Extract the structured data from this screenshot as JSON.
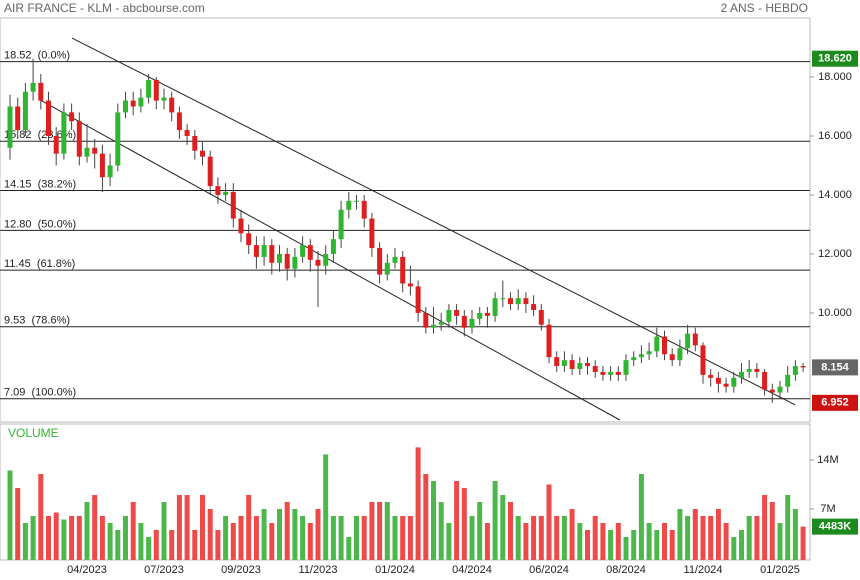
{
  "chart_data": {
    "type": "candlestick",
    "title": "AIR FRANCE - KLM - abcbourse.com",
    "subtitle": "2 ANS - HEBDO",
    "volume_label": "VOLUME",
    "categories": [
      null,
      null,
      null,
      null,
      null,
      null,
      null,
      null,
      null,
      null,
      "04/2023",
      null,
      null,
      null,
      null,
      null,
      null,
      null,
      null,
      null,
      "07/2023",
      null,
      null,
      null,
      null,
      null,
      null,
      null,
      null,
      null,
      "09/2023",
      null,
      null,
      null,
      null,
      null,
      null,
      null,
      null,
      null,
      "11/2023",
      null,
      null,
      null,
      null,
      null,
      null,
      null,
      null,
      null,
      "01/2024",
      null,
      null,
      null,
      null,
      null,
      null,
      null,
      null,
      null,
      "04/2024",
      null,
      null,
      null,
      null,
      null,
      null,
      null,
      null,
      null,
      "06/2024",
      null,
      null,
      null,
      null,
      null,
      null,
      null,
      null,
      null,
      "08/2024",
      null,
      null,
      null,
      null,
      null,
      null,
      null,
      null,
      null,
      "11/2024",
      null,
      null,
      null,
      null,
      null,
      null,
      null,
      null,
      null,
      "01/2025",
      null,
      null,
      null
    ],
    "open": [
      15.6,
      17.0,
      16.2,
      17.5,
      17.8,
      17.2,
      16.0,
      15.4,
      16.8,
      16.5,
      15.3,
      15.6,
      15.4,
      14.6,
      15.0,
      16.8,
      17.2,
      17.0,
      17.3,
      17.9,
      17.2,
      17.3,
      16.8,
      16.2,
      16.0,
      15.5,
      15.3,
      14.3,
      14.0,
      14.1,
      13.2,
      12.7,
      12.3,
      11.9,
      12.3,
      11.7,
      12.0,
      11.5,
      11.9,
      12.3,
      11.8,
      11.6,
      12.0,
      12.5,
      13.5,
      13.8,
      13.8,
      13.2,
      12.2,
      11.3,
      11.7,
      11.9,
      11.0,
      10.9,
      10.0,
      9.5,
      9.6,
      9.7,
      10.1,
      9.9,
      9.5,
      9.8,
      10.0,
      9.9,
      10.5,
      10.5,
      10.3,
      10.5,
      10.3,
      10.1,
      9.6,
      8.5,
      8.2,
      8.4,
      8.1,
      8.3,
      8.2,
      8.0,
      7.9,
      8.0,
      7.9,
      8.4,
      8.5,
      8.6,
      8.7,
      9.2,
      8.6,
      8.4,
      8.8,
      9.3,
      8.9,
      7.9,
      7.8,
      7.6,
      7.5,
      7.8,
      8.0,
      8.1,
      8.0,
      7.4,
      7.3,
      7.5,
      7.9,
      8.2
    ],
    "high": [
      17.4,
      17.3,
      17.8,
      18.62,
      18.1,
      17.5,
      16.3,
      17.1,
      17.1,
      16.8,
      16.4,
      15.9,
      15.7,
      15.4,
      17.1,
      17.5,
      17.5,
      17.6,
      18.1,
      18.0,
      17.6,
      17.5,
      17.0,
      16.4,
      16.2,
      15.8,
      15.5,
      14.6,
      14.4,
      14.4,
      13.5,
      13.0,
      12.6,
      12.6,
      12.5,
      12.3,
      12.2,
      12.2,
      12.6,
      12.5,
      12.1,
      12.3,
      12.8,
      13.8,
      14.1,
      14.0,
      14.0,
      13.4,
      12.4,
      12.0,
      12.2,
      12.1,
      11.6,
      11.1,
      10.2,
      10.2,
      10.0,
      10.3,
      10.3,
      10.1,
      10.1,
      10.2,
      10.2,
      10.7,
      11.1,
      10.7,
      10.8,
      10.7,
      10.6,
      10.3,
      9.8,
      8.7,
      8.7,
      8.6,
      8.5,
      8.5,
      8.4,
      8.2,
      8.2,
      8.2,
      8.6,
      8.7,
      8.9,
      9.0,
      9.5,
      9.4,
      8.8,
      9.1,
      9.6,
      9.5,
      9.0,
      8.1,
      8.0,
      7.8,
      8.0,
      8.3,
      8.4,
      8.3,
      8.1,
      7.6,
      7.7,
      8.2,
      8.4,
      8.3
    ],
    "low": [
      15.2,
      15.9,
      16.0,
      17.2,
      16.9,
      15.7,
      15.0,
      15.2,
      16.2,
      15.0,
      15.1,
      14.9,
      14.1,
      14.3,
      14.8,
      16.6,
      16.7,
      16.8,
      17.1,
      16.9,
      16.9,
      16.5,
      15.9,
      15.7,
      15.2,
      15.0,
      14.0,
      13.7,
      13.8,
      12.9,
      12.4,
      12.0,
      11.5,
      11.6,
      11.3,
      11.4,
      11.1,
      11.2,
      11.7,
      11.4,
      10.2,
      11.3,
      11.7,
      12.2,
      13.2,
      13.5,
      12.9,
      11.9,
      11.0,
      11.1,
      11.5,
      10.7,
      10.6,
      9.7,
      9.3,
      9.3,
      9.4,
      9.5,
      9.6,
      9.2,
      9.3,
      9.6,
      9.5,
      9.7,
      10.2,
      10.1,
      10.1,
      10.0,
      9.9,
      9.4,
      8.3,
      8.0,
      8.0,
      7.9,
      7.9,
      7.9,
      7.8,
      7.7,
      7.7,
      7.7,
      7.7,
      8.2,
      8.3,
      8.4,
      8.5,
      8.4,
      8.2,
      8.2,
      8.6,
      8.7,
      7.6,
      7.5,
      7.3,
      7.3,
      7.3,
      7.6,
      7.8,
      7.8,
      7.2,
      6.952,
      7.1,
      7.3,
      7.7,
      8.0
    ],
    "close": [
      17.0,
      16.2,
      17.5,
      17.8,
      17.2,
      16.0,
      15.4,
      16.8,
      16.5,
      15.3,
      15.6,
      15.4,
      14.6,
      15.0,
      16.8,
      17.2,
      17.0,
      17.3,
      17.9,
      17.2,
      17.3,
      16.8,
      16.2,
      16.0,
      15.5,
      15.3,
      14.3,
      14.0,
      14.1,
      13.2,
      12.7,
      12.3,
      11.9,
      12.3,
      11.7,
      12.0,
      11.5,
      11.9,
      12.3,
      11.8,
      11.6,
      12.0,
      12.5,
      13.5,
      13.8,
      13.8,
      13.2,
      12.2,
      11.3,
      11.7,
      11.9,
      11.0,
      10.9,
      10.0,
      9.5,
      9.6,
      9.7,
      10.1,
      9.9,
      9.5,
      9.8,
      10.0,
      9.9,
      10.5,
      10.5,
      10.3,
      10.5,
      10.3,
      10.1,
      9.6,
      8.5,
      8.2,
      8.4,
      8.1,
      8.3,
      8.2,
      8.0,
      7.9,
      8.0,
      7.9,
      8.4,
      8.5,
      8.6,
      8.7,
      9.2,
      8.6,
      8.4,
      8.8,
      9.3,
      8.9,
      7.9,
      7.8,
      7.6,
      7.5,
      7.8,
      8.0,
      8.1,
      8.0,
      7.4,
      7.3,
      7.5,
      7.9,
      8.2,
      8.154
    ],
    "volume": [
      12.5,
      10,
      5,
      6,
      12,
      6,
      6.5,
      5.5,
      6,
      6,
      8,
      9,
      6,
      5,
      4,
      6,
      8,
      5,
      3,
      4,
      8,
      4,
      9,
      9,
      4,
      9,
      7,
      4,
      6,
      5,
      6,
      9,
      6,
      7,
      5,
      7,
      8,
      7,
      6,
      5,
      7,
      14.8,
      6,
      6,
      3,
      6,
      6,
      8,
      8,
      8,
      6,
      6,
      6,
      15.8,
      12,
      11,
      8,
      5,
      11,
      10,
      6,
      8,
      5,
      11,
      9,
      8,
      6,
      5,
      6,
      6,
      10.5,
      6,
      6,
      7,
      5,
      4,
      6,
      5,
      4,
      5,
      3,
      4,
      12,
      5,
      4,
      5,
      4,
      7,
      6,
      7,
      6,
      6,
      7,
      5,
      3,
      4,
      6,
      6,
      9,
      8,
      5,
      9,
      7,
      4.483
    ],
    "up_color": "#2fb52f",
    "down_color": "#dd1f1f",
    "volume_up_color": "#4cb84c",
    "volume_down_color": "#ee4a4a",
    "ylim": [
      6.37,
      20.0
    ],
    "yticks": [
      {
        "value": 18,
        "label": "18.000"
      },
      {
        "value": 16,
        "label": "16.000"
      },
      {
        "value": 14,
        "label": "14.000"
      },
      {
        "value": 12,
        "label": "12.000"
      },
      {
        "value": 10,
        "label": "10.000"
      }
    ],
    "volume_lim": [
      0,
      19
    ],
    "volume_ticks": [
      {
        "value": 14,
        "label": "14M"
      },
      {
        "value": 7,
        "label": "7M"
      }
    ],
    "fibonacci": [
      {
        "value": 18.52,
        "label": "18.52  (0.0%)"
      },
      {
        "value": 15.82,
        "label": "15.82  (23.6%)"
      },
      {
        "value": 14.15,
        "label": "14.15  (38.2%)"
      },
      {
        "value": 12.8,
        "label": "12.80  (50.0%)"
      },
      {
        "value": 11.45,
        "label": "11.45  (61.8%)"
      },
      {
        "value": 9.53,
        "label": "9.53  (78.6%)"
      },
      {
        "value": 7.09,
        "label": "7.09  (100.0%)"
      }
    ],
    "badges": [
      {
        "value": 18.62,
        "label": "18.620",
        "color": "#1d8a1d"
      },
      {
        "value": 8.154,
        "label": "8.154",
        "color": "#666666"
      },
      {
        "value": 6.952,
        "label": "6.952",
        "color": "#cc1111"
      }
    ],
    "volume_badge": {
      "value": 4.483,
      "label": "4483K",
      "color": "#1d8a1d"
    },
    "trendlines": [
      {
        "x": [
          8.05,
          102.0
        ],
        "y": [
          19.32,
          6.88
        ]
      },
      {
        "x": [
          3.9,
          79.2
        ],
        "y": [
          17.22,
          6.37
        ]
      }
    ]
  }
}
